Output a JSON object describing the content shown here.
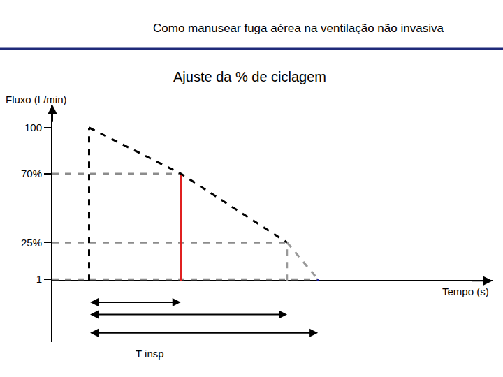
{
  "chart_data": {
    "type": "line",
    "title": "Como manusear fuga aérea na ventilação não invasiva",
    "subtitle": "Ajuste da % de ciclagem",
    "x_label": "Tempo (s)",
    "y_label": "Fluxo (L/min)",
    "xlim": [
      0,
      6
    ],
    "ylim": [
      -40,
      115
    ],
    "yticks": [
      1,
      {
        "value": 25,
        "label": "25%"
      },
      {
        "value": 70,
        "label": "70%"
      },
      100
    ],
    "yticks_labels_fix": null,
    "tick_labels": "y",
    "grid": false,
    "series": [
      {
        "color": "#000000",
        "line_style": "dashed",
        "x": [
          0.5,
          1.75,
          3.2
        ],
        "values": [
          100,
          70,
          25
        ]
      },
      {
        "color": "#999999",
        "line_style": "dashed",
        "x": [
          3.2,
          3.62
        ],
        "values": [
          25,
          1
        ]
      }
    ],
    "vertical_lines": [
      {
        "x": 0.5,
        "value": 100,
        "color": "#000000",
        "line_style": "dashed"
      },
      {
        "x": 1.75,
        "value": 70,
        "color": "#e02020",
        "line_style": "solid"
      },
      {
        "x": 3.2,
        "value": 25,
        "color": "#999999",
        "line_style": "dashed"
      },
      {
        "x": 3.62,
        "value": 1,
        "color": "#1a1aa6",
        "line_style": "solid"
      }
    ],
    "t_insp": {
      "label": "T insp",
      "start": 0.5,
      "ends": [
        1.75,
        3.2,
        3.62
      ]
    }
  }
}
